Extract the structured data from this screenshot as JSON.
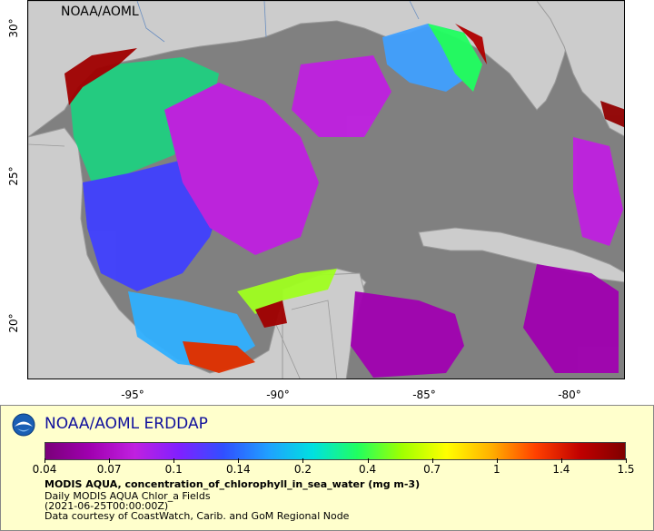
{
  "map": {
    "corner_label": "NOAA/AOML",
    "lat_ticks": [
      "30°",
      "25°",
      "20°"
    ],
    "lon_ticks": [
      "-95°",
      "-90°",
      "-85°",
      "-80°"
    ],
    "colors": {
      "ocean_nodata": "#808080",
      "land": "#cccccc",
      "border": "#9a9a9a",
      "river": "#6a8ec0"
    }
  },
  "legend": {
    "title": "NOAA/AOML ERDDAP",
    "colorbar_ticks": [
      "0.04",
      "0.07",
      "0.1",
      "0.14",
      "0.2",
      "0.4",
      "0.7",
      "1",
      "1.4",
      "1.5"
    ],
    "variable": "MODIS AQUA, concentration_of_chlorophyll_in_sea_water (mg m-3)",
    "dataset": "Daily MODIS AQUA Chlor_a Fields",
    "time": "(2021-06-25T00:00:00Z)",
    "courtesy": "Data courtesy of CoastWatch, Carib. and GoM Regional Node",
    "colormap": [
      "#7a007a",
      "#a000b0",
      "#c020e0",
      "#8020ff",
      "#3050ff",
      "#20a0ff",
      "#00e0e0",
      "#20ff60",
      "#a0ff00",
      "#ffff00",
      "#ffb000",
      "#ff4000",
      "#c00000",
      "#800000"
    ]
  }
}
